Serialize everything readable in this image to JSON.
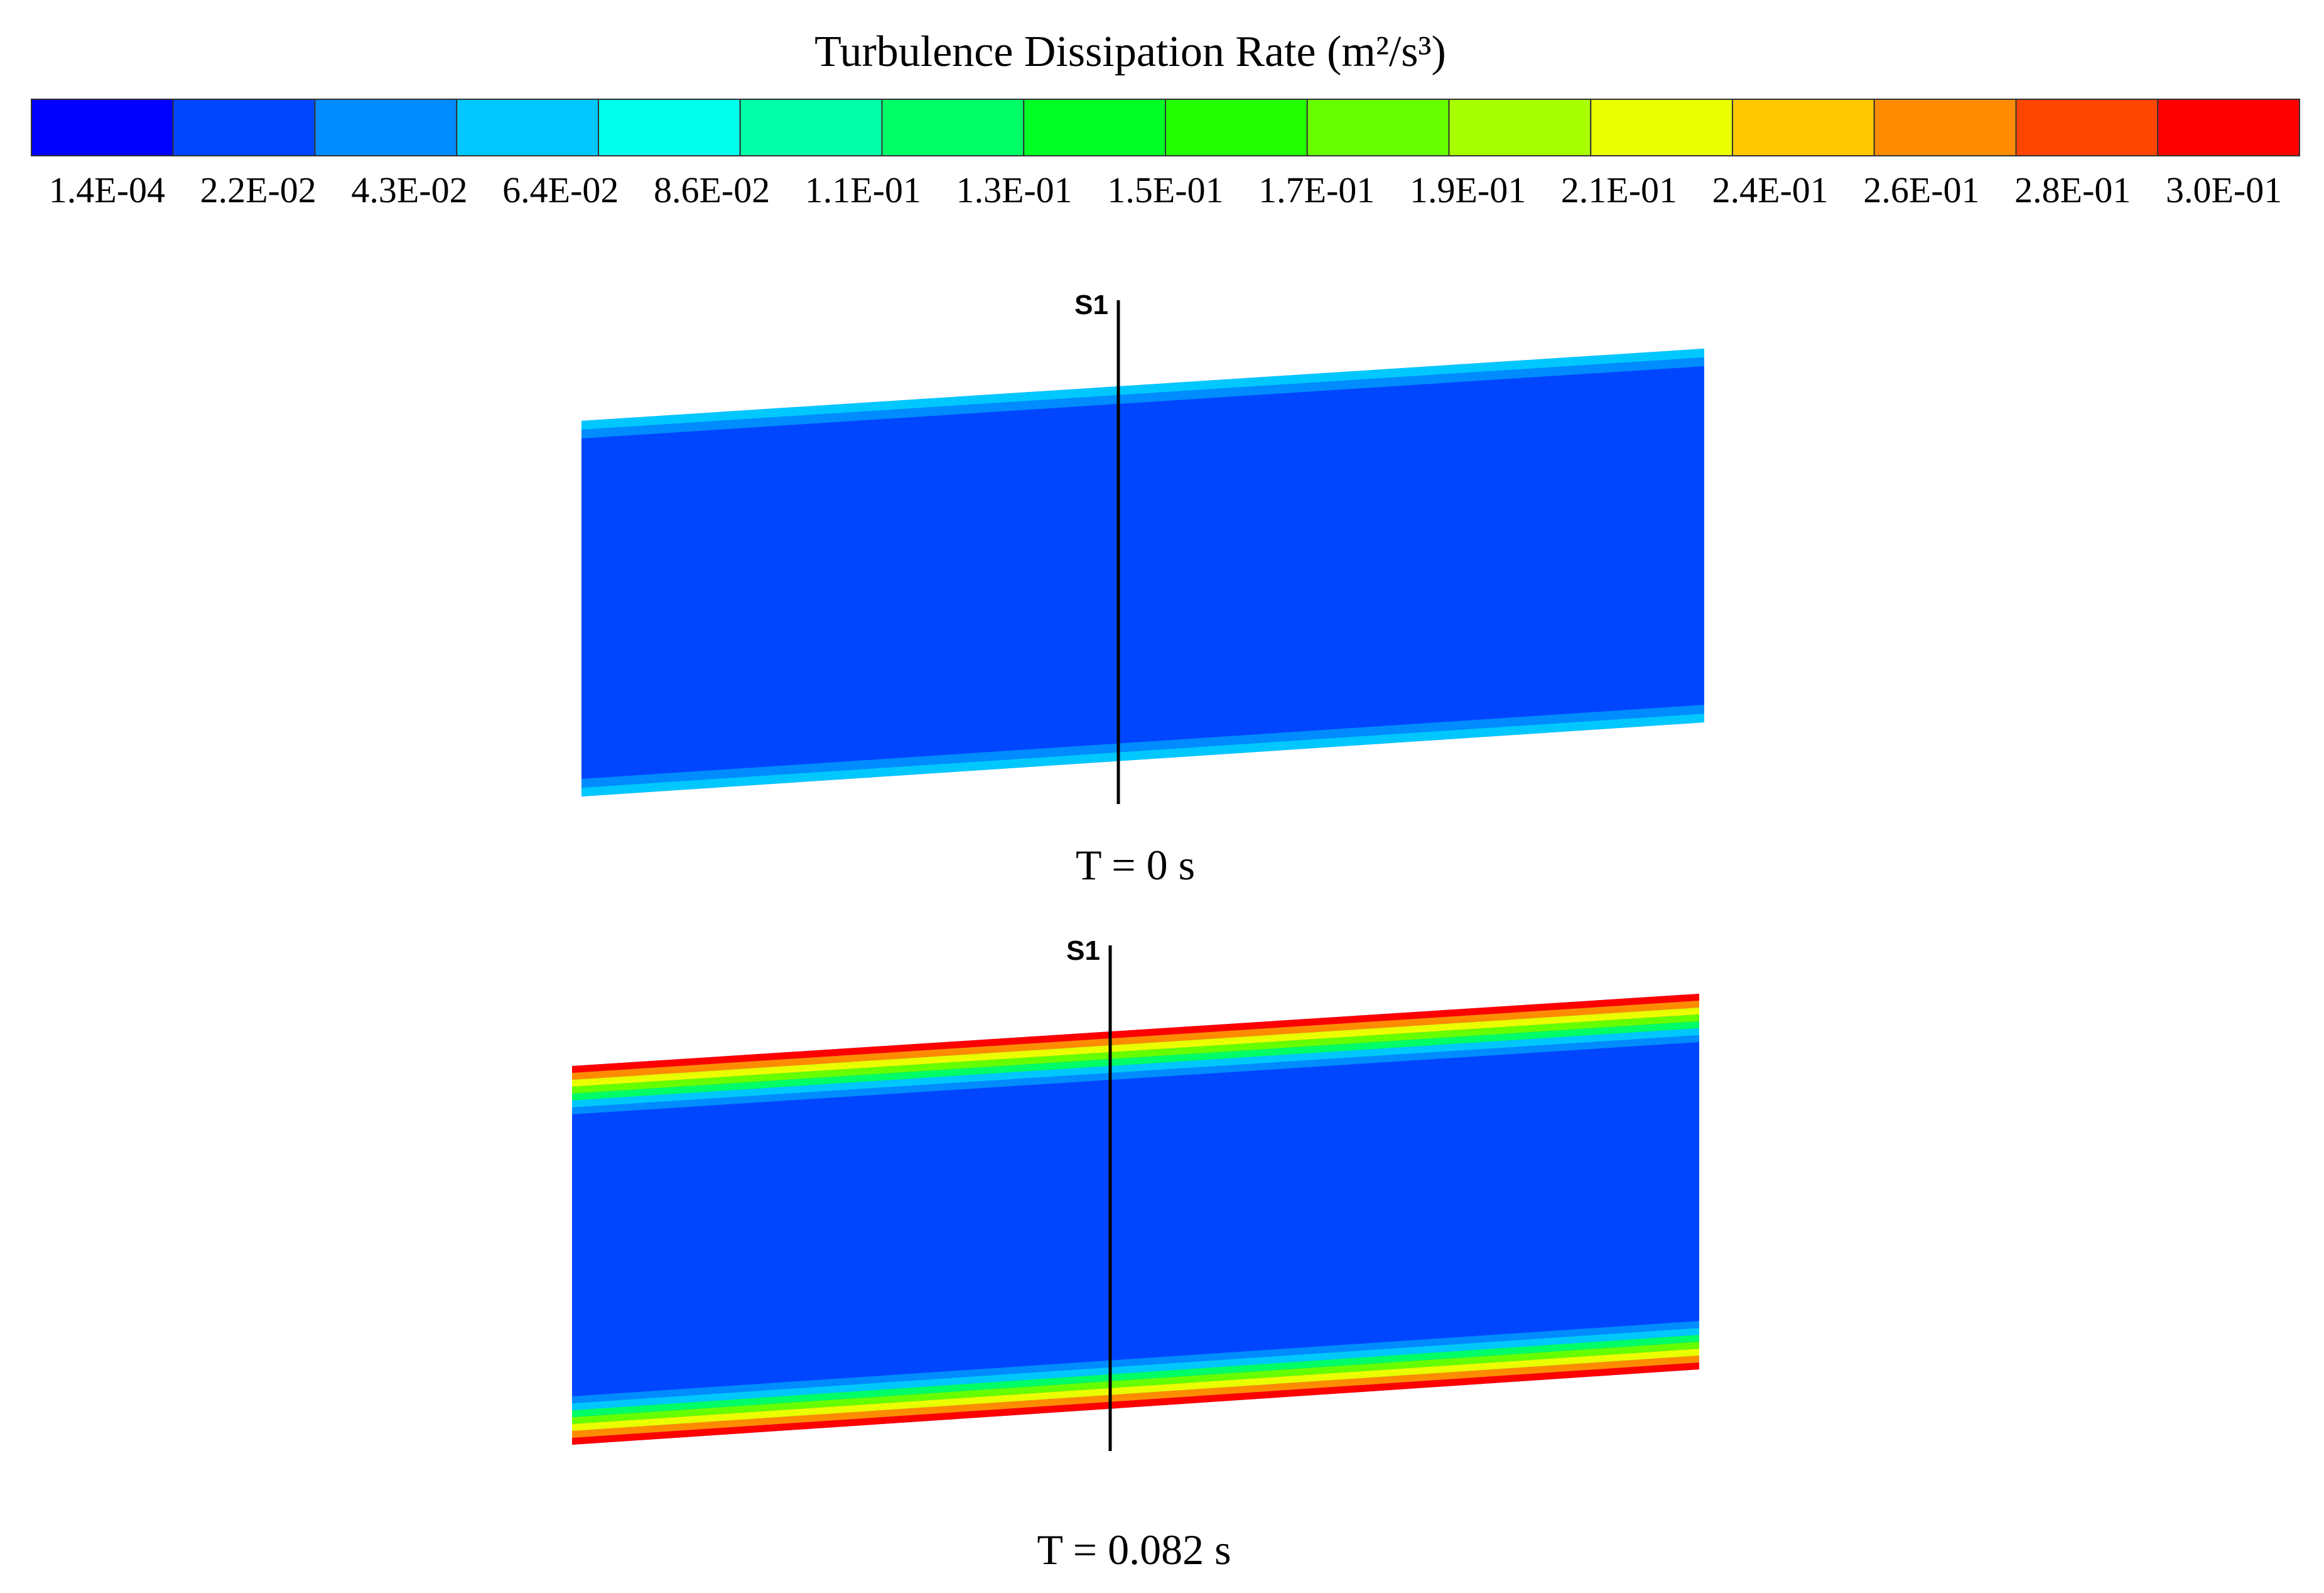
{
  "legend": {
    "title": "Turbulence Dissipation Rate (m²/s³)",
    "colors": [
      "#0000ff",
      "#0046ff",
      "#008cff",
      "#00c8ff",
      "#00ffea",
      "#00ffa8",
      "#00ff66",
      "#00ff24",
      "#24ff00",
      "#66ff00",
      "#a8ff00",
      "#eaff00",
      "#ffc800",
      "#ff8c00",
      "#ff4600",
      "#ff0000"
    ],
    "tick_labels": [
      "1.4E-04",
      "2.2E-02",
      "4.3E-02",
      "6.4E-02",
      "8.6E-02",
      "1.1E-01",
      "1.3E-01",
      "1.5E-01",
      "1.7E-01",
      "1.9E-01",
      "2.1E-01",
      "2.4E-01",
      "2.6E-01",
      "2.8E-01",
      "3.0E-01"
    ]
  },
  "panels": [
    {
      "section_label": "S1",
      "caption": "T = 0 s",
      "core_color": "#0046ff",
      "wall_bands": [
        "#00c8ff",
        "#008cff"
      ]
    },
    {
      "section_label": "S1",
      "caption": "T = 0.082 s",
      "core_color": "#0046ff",
      "wall_bands": [
        "#ff0000",
        "#ff8c00",
        "#eaff00",
        "#66ff00",
        "#00ff66",
        "#00c8ff",
        "#008cff"
      ]
    }
  ]
}
